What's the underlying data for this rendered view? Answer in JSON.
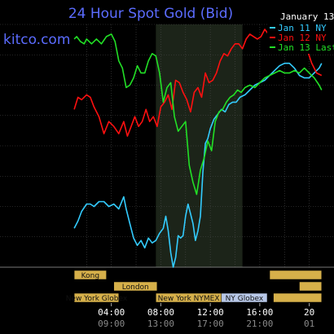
{
  "chart_data": {
    "type": "line",
    "title": "24 Hour Spot Gold (Bid)",
    "site": "kitco.com",
    "date": "January 13",
    "grid": true,
    "x_unit": "hours",
    "xlim": [
      1,
      21
    ],
    "ylim": [
      0,
      100
    ],
    "market_highlight": [
      7.6,
      14.6
    ],
    "x_ticks": [
      {
        "x": 4,
        "label": "04:00",
        "sublabel": "09:00"
      },
      {
        "x": 8,
        "label": "08:00",
        "sublabel": "13:00"
      },
      {
        "x": 12,
        "label": "12:00",
        "sublabel": "17:00"
      },
      {
        "x": 16,
        "label": "16:00",
        "sublabel": "21:00"
      },
      {
        "x": 20,
        "label": "20",
        "sublabel": "01"
      }
    ],
    "sessions_row1": [
      {
        "label": "Kong",
        "start": 1,
        "end": 3.6,
        "color": "#d6b04a"
      },
      {
        "label": "",
        "start": 16.8,
        "end": 21,
        "color": "#d6b04a"
      }
    ],
    "sessions_row2": [
      {
        "label": "London",
        "start": 4.2,
        "end": 7.7,
        "color": "#d6b04a"
      },
      {
        "label": "",
        "start": 19.2,
        "end": 21,
        "color": "#d6b04a"
      }
    ],
    "sessions_row3": [
      {
        "label": "New York Globex",
        "start": 1,
        "end": 4.6,
        "color": "#d6b04a"
      },
      {
        "label": "New York NYMEX",
        "start": 7.6,
        "end": 12.9,
        "color": "#d6b04a"
      },
      {
        "label": "NY Globex",
        "start": 12.9,
        "end": 16.6,
        "color": "#b8c8e8"
      },
      {
        "label": "",
        "start": 17.1,
        "end": 21,
        "color": "#d6b04a"
      }
    ],
    "series": [
      {
        "name": "Jan 11 NY",
        "color": "#33ccff",
        "x": [
          1,
          1.3,
          1.6,
          2.0,
          2.3,
          2.6,
          3.0,
          3.4,
          3.8,
          4.2,
          4.6,
          5.0,
          5.2,
          5.5,
          5.8,
          6.1,
          6.4,
          6.7,
          7.0,
          7.3,
          7.6,
          7.9,
          8.2,
          8.4,
          8.6,
          8.8,
          9.0,
          9.2,
          9.4,
          9.6,
          9.8,
          10.0,
          10.2,
          10.4,
          10.6,
          10.8,
          11.0,
          11.2,
          11.4,
          11.6,
          11.8,
          12.0,
          12.3,
          12.6,
          12.9,
          13.2,
          13.5,
          13.8,
          14.1,
          14.4,
          14.8,
          15.2,
          15.6,
          16.0,
          16.4,
          16.8,
          17.2,
          17.6,
          18.0,
          18.4,
          18.8,
          19.2,
          19.6,
          20.0,
          20.4,
          20.8,
          21.0
        ],
        "values": [
          16,
          19,
          23,
          26,
          26,
          25,
          27,
          27,
          25,
          26,
          24,
          29,
          24,
          18,
          12,
          9,
          11,
          8,
          12,
          10,
          11,
          14,
          16,
          21,
          15,
          6,
          0,
          4,
          13,
          12,
          13,
          21,
          26,
          22,
          18,
          11,
          15,
          21,
          39,
          51,
          53,
          57,
          61,
          63,
          65,
          64,
          67,
          68,
          68,
          70,
          71,
          73,
          75,
          76,
          77,
          79,
          81,
          83,
          84,
          84,
          82,
          79,
          78,
          78,
          80,
          82,
          84
        ]
      },
      {
        "name": "Jan 12 NY",
        "color": "#ff1010",
        "x": [
          1,
          1.3,
          1.6,
          2.0,
          2.3,
          2.6,
          3.0,
          3.4,
          3.8,
          4.2,
          4.6,
          5.0,
          5.3,
          5.6,
          5.9,
          6.2,
          6.5,
          6.8,
          7.1,
          7.4,
          7.7,
          8.0,
          8.3,
          8.6,
          8.9,
          9.2,
          9.5,
          9.8,
          10.1,
          10.4,
          10.7,
          11.0,
          11.3,
          11.6,
          11.9,
          12.2,
          12.5,
          12.8,
          13.1,
          13.4,
          13.7,
          14.0,
          14.3,
          14.6,
          14.9,
          15.2,
          15.5,
          15.8,
          16.1,
          16.4,
          16.7,
          17.0,
          17.4,
          17.8,
          18.2,
          18.6,
          19.0,
          19.4,
          19.8,
          20.2,
          20.6,
          21.0
        ],
        "values": [
          65,
          70,
          69,
          71,
          70,
          66,
          62,
          55,
          60,
          58,
          55,
          60,
          54,
          58,
          62,
          58,
          60,
          65,
          60,
          62,
          58,
          66,
          68,
          71,
          65,
          77,
          76,
          72,
          69,
          64,
          72,
          74,
          70,
          80,
          76,
          77,
          80,
          85,
          88,
          87,
          90,
          92,
          92,
          90,
          94,
          96,
          95,
          94,
          95,
          98,
          96,
          97,
          94,
          92,
          90,
          90,
          92,
          91,
          90,
          84,
          80,
          79
        ]
      },
      {
        "name": "Jan 13 Last",
        "color": "#22e026",
        "x": [
          1,
          1.2,
          1.5,
          1.8,
          2.0,
          2.4,
          2.8,
          3.2,
          3.6,
          4.0,
          4.3,
          4.6,
          4.9,
          5.2,
          5.5,
          5.8,
          6.1,
          6.4,
          6.7,
          7.0,
          7.3,
          7.6,
          7.9,
          8.2,
          8.5,
          8.8,
          9.1,
          9.4,
          9.7,
          10.0,
          10.3,
          10.6,
          10.9,
          11.2,
          11.5,
          11.8,
          12.1,
          12.4,
          12.7,
          13.0,
          13.3,
          13.6,
          13.9,
          14.2,
          14.5,
          14.8,
          15.2,
          15.6,
          16.0,
          16.4,
          16.8,
          17.2,
          17.6,
          18.0,
          18.4,
          18.8,
          19.2,
          19.6,
          20.0,
          20.4,
          20.8,
          21.0
        ],
        "values": [
          94,
          95,
          93,
          92,
          94,
          92,
          94,
          92,
          95,
          96,
          93,
          85,
          82,
          74,
          75,
          78,
          83,
          80,
          80,
          85,
          88,
          87,
          80,
          68,
          74,
          76,
          62,
          56,
          58,
          60,
          42,
          35,
          30,
          40,
          45,
          52,
          48,
          60,
          64,
          65,
          68,
          70,
          71,
          73,
          72,
          74,
          75,
          74,
          76,
          78,
          79,
          80,
          81,
          80,
          80,
          81,
          80,
          82,
          80,
          78,
          75,
          73
        ]
      }
    ]
  }
}
